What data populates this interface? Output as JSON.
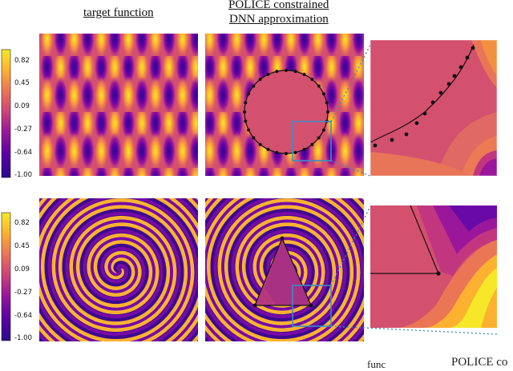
{
  "headers": {
    "target": "target function",
    "police_line1": "POLICE constrained",
    "police_line2": "DNN approximation"
  },
  "colorbar": {
    "ticks": [
      "0.82",
      "0.45",
      "0.09",
      "-0.27",
      "-0.64",
      "-1.00"
    ],
    "tick_values": [
      0.82,
      0.45,
      0.09,
      -0.27,
      -0.64,
      -1.0
    ],
    "colormap": [
      "#0d0887",
      "#5b02a3",
      "#9a179b",
      "#cb4679",
      "#eb7655",
      "#fdb130",
      "#f0f921"
    ]
  },
  "rows": [
    {
      "name": "sinusoid",
      "constraint_region": "circle",
      "zoom_box_color": "#3b8ec4"
    },
    {
      "name": "spiral",
      "constraint_region": "triangle",
      "zoom_box_color": "#3b8ec4"
    }
  ],
  "bottom_clipped_text": {
    "left": "func",
    "right": "POLICE co"
  }
}
